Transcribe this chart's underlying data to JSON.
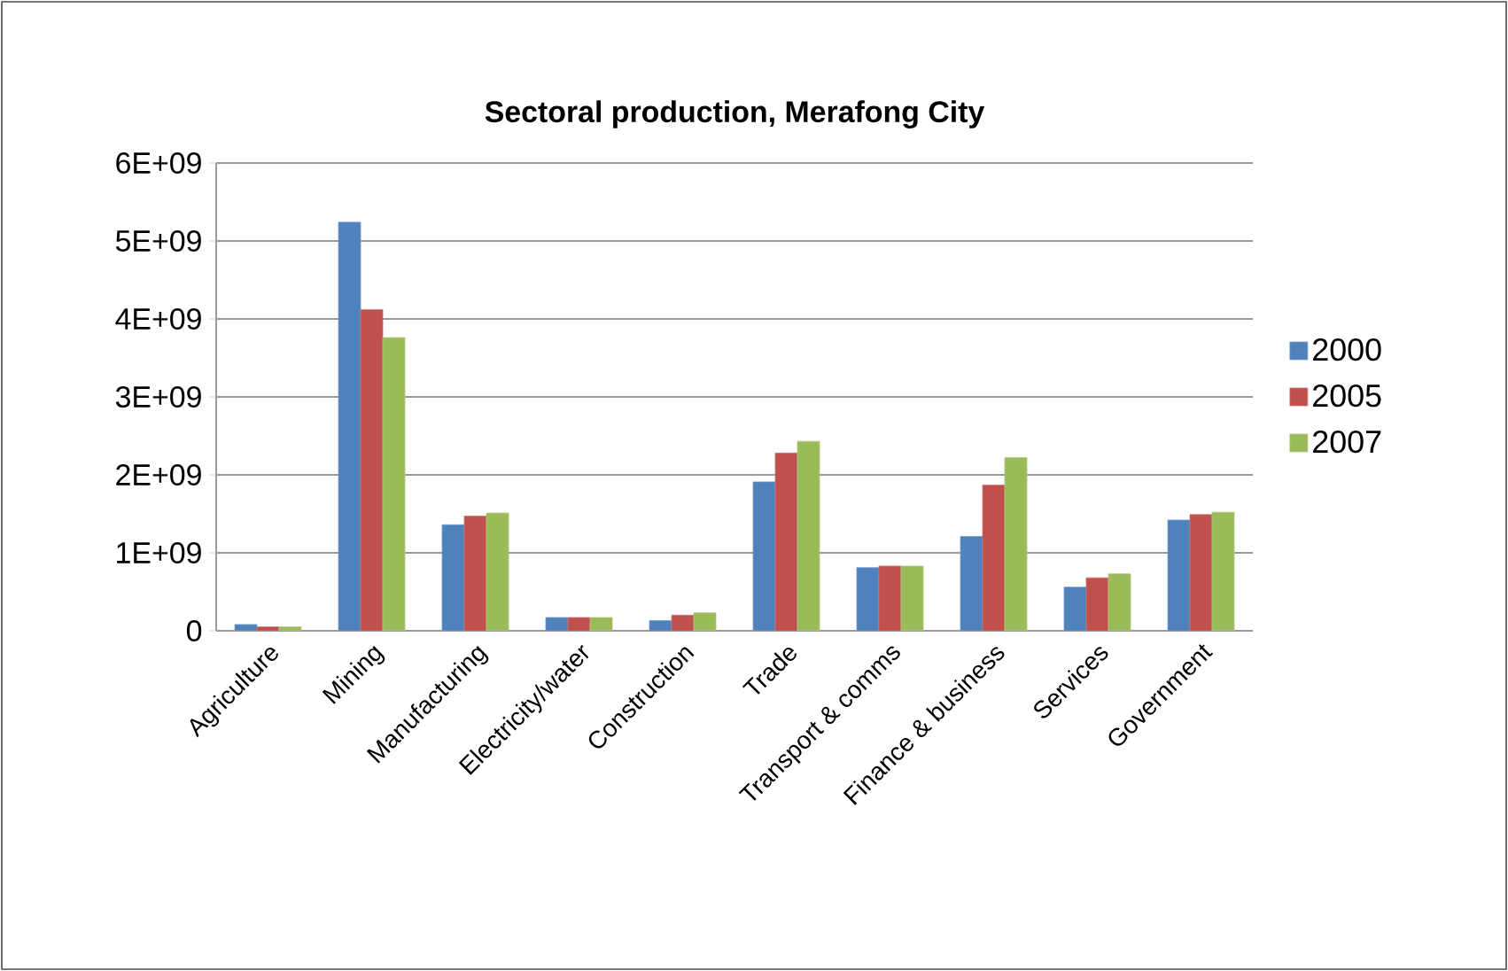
{
  "chart_data": {
    "type": "bar",
    "title": "Sectoral production, Merafong City",
    "categories": [
      "Agriculture",
      "Mining",
      "Manufacturing",
      "Electricity/water",
      "Construction",
      "Trade",
      "Transport & comms",
      "Finance & business",
      "Services",
      "Government"
    ],
    "series": [
      {
        "name": "2000",
        "color": "#4f81bd",
        "values": [
          80000000,
          5240000000,
          1360000000,
          170000000,
          130000000,
          1910000000,
          810000000,
          1210000000,
          560000000,
          1420000000
        ]
      },
      {
        "name": "2005",
        "color": "#c0504d",
        "values": [
          50000000,
          4120000000,
          1470000000,
          170000000,
          200000000,
          2280000000,
          830000000,
          1870000000,
          680000000,
          1490000000
        ]
      },
      {
        "name": "2007",
        "color": "#9bbb59",
        "values": [
          50000000,
          3760000000,
          1510000000,
          170000000,
          230000000,
          2430000000,
          830000000,
          2220000000,
          730000000,
          1520000000
        ]
      }
    ],
    "ylim": [
      0,
      6000000000
    ],
    "yticks": [
      0,
      {
        "value": 1000000000,
        "label": "1E+09"
      },
      {
        "value": 2000000000,
        "label": "2E+09"
      },
      {
        "value": 3000000000,
        "label": "3E+09"
      },
      {
        "value": 4000000000,
        "label": "4E+09"
      },
      {
        "value": 5000000000,
        "label": "5E+09"
      },
      {
        "value": 6000000000,
        "label": "6E+09"
      }
    ],
    "grid": "y",
    "legend": "right"
  }
}
